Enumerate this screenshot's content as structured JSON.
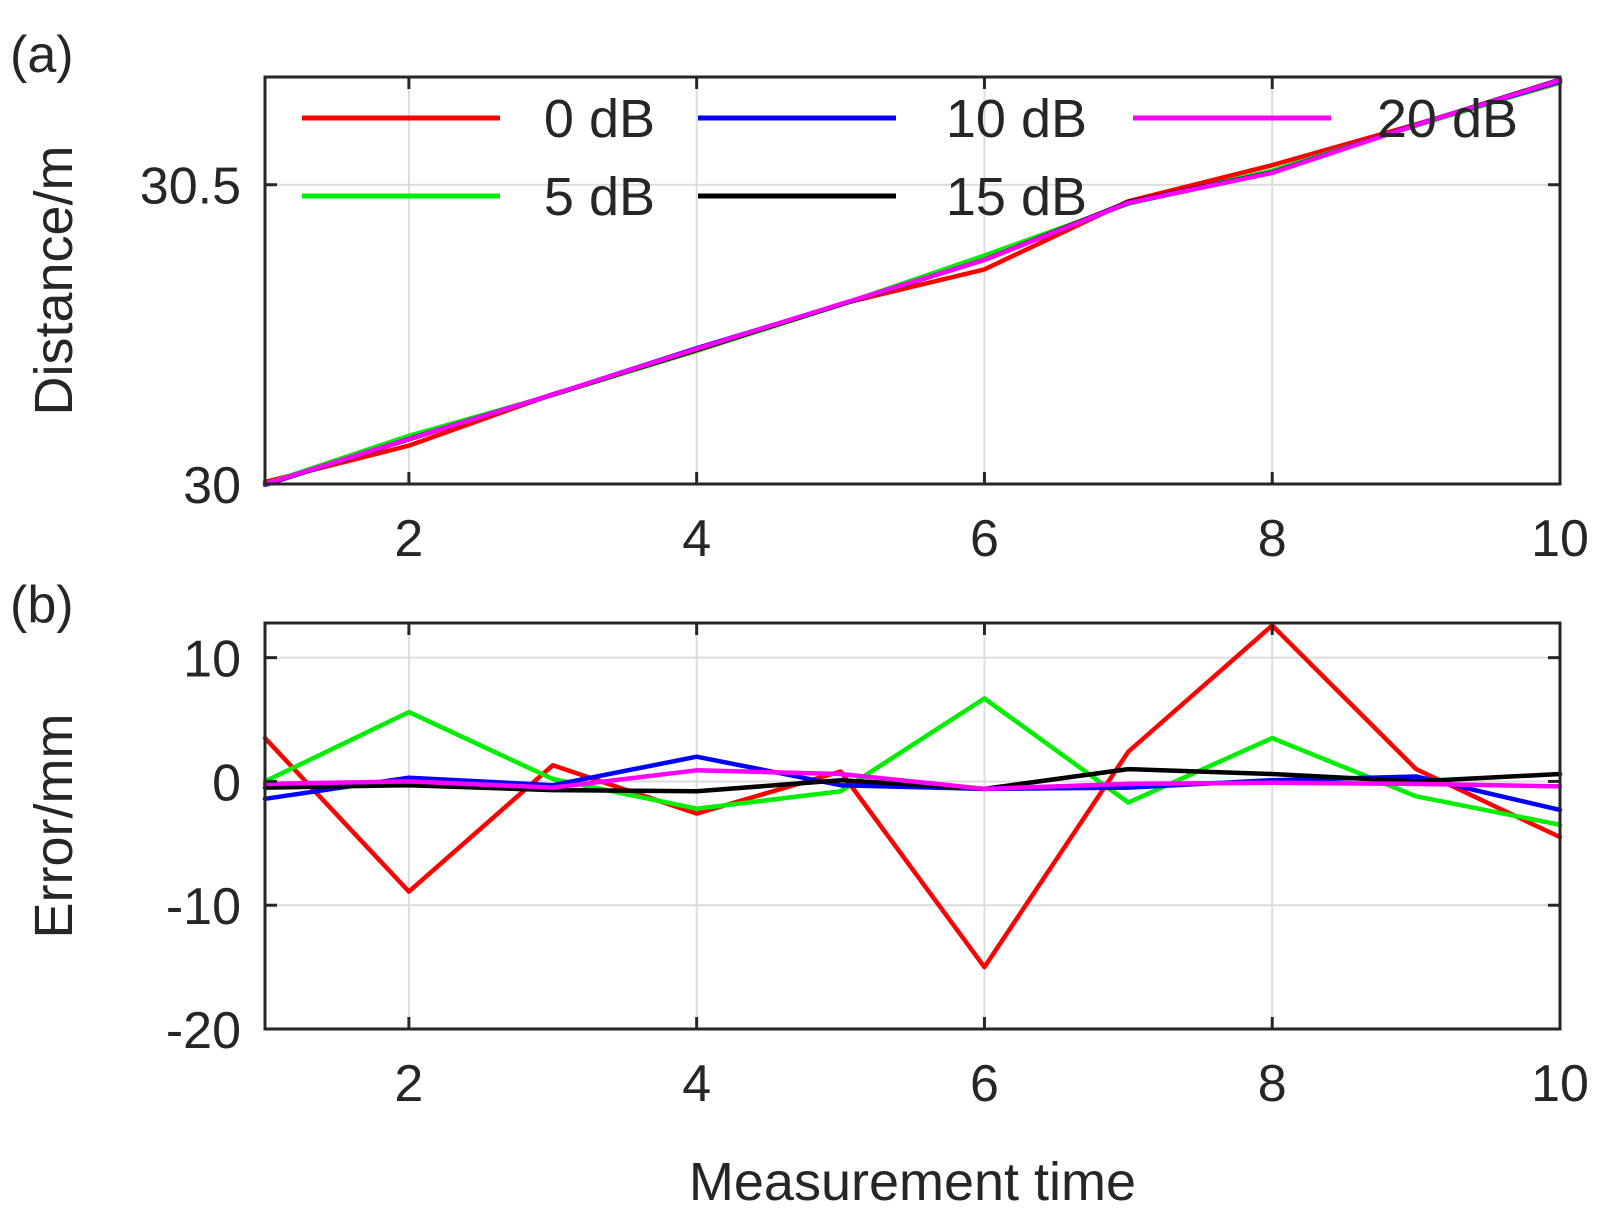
{
  "chart_data": [
    {
      "panel_label": "(a)",
      "type": "line",
      "xlabel": "",
      "ylabel": "Distance/m",
      "xlim": [
        1,
        10
      ],
      "ylim": [
        30,
        30.68
      ],
      "xticks": [
        2,
        4,
        6,
        8,
        10
      ],
      "yticks": [
        30,
        30.5
      ],
      "ytick_labels": [
        "30",
        "30.5"
      ],
      "grid": true,
      "legend": {
        "placement": "top",
        "columns": 3
      },
      "x": [
        1,
        2,
        3,
        4,
        5,
        6,
        7,
        8,
        9,
        10
      ],
      "series": [
        {
          "name": "0 dB",
          "color": "#ff0000",
          "values": [
            30.0035,
            30.0641,
            30.1498,
            30.2224,
            30.3008,
            30.3585,
            30.4724,
            30.5326,
            30.601,
            30.6705
          ]
        },
        {
          "name": "5 dB",
          "color": "#00ee00",
          "values": [
            30.0,
            30.0806,
            30.1487,
            30.2228,
            30.2992,
            30.3817,
            30.4683,
            30.5235,
            30.5988,
            30.6715
          ]
        },
        {
          "name": "10 dB",
          "color": "#0000ff",
          "values": [
            29.9986,
            30.0753,
            30.1492,
            30.227,
            30.2997,
            30.3744,
            30.4695,
            30.5201,
            30.6004,
            30.6727
          ]
        },
        {
          "name": "15 dB",
          "color": "#000000",
          "values": [
            29.9995,
            30.0747,
            30.1493,
            30.2242,
            30.2999,
            30.3744,
            30.471,
            30.5206,
            30.6,
            30.6756
          ]
        },
        {
          "name": "20 dB",
          "color": "#ff00ff",
          "values": [
            29.9998,
            30.075,
            30.1495,
            30.2259,
            30.3006,
            30.3744,
            30.4698,
            30.5199,
            30.5998,
            30.6746
          ]
        }
      ]
    },
    {
      "panel_label": "(b)",
      "type": "line",
      "xlabel": "Measurement time",
      "ylabel": "Error/mm",
      "xlim": [
        1,
        10
      ],
      "ylim": [
        -20,
        12.8
      ],
      "xticks": [
        2,
        4,
        6,
        8,
        10
      ],
      "yticks": [
        -20,
        -10,
        0,
        10
      ],
      "ytick_labels": [
        "-20",
        "-10",
        "0",
        "10"
      ],
      "grid": true,
      "x": [
        1,
        2,
        3,
        4,
        5,
        6,
        7,
        8,
        9,
        10
      ],
      "series": [
        {
          "name": "0 dB",
          "color": "#ff0000",
          "values": [
            3.5,
            -8.9,
            1.3,
            -2.6,
            0.8,
            -15.0,
            2.4,
            12.6,
            1.0,
            -4.5
          ]
        },
        {
          "name": "5 dB",
          "color": "#00ee00",
          "values": [
            0,
            5.6,
            0.2,
            -2.2,
            -0.8,
            6.7,
            -1.7,
            3.5,
            -1.2,
            -3.5
          ]
        },
        {
          "name": "10 dB",
          "color": "#0000ff",
          "values": [
            -1.4,
            0.3,
            -0.3,
            2.0,
            -0.3,
            -0.6,
            -0.5,
            0.1,
            0.4,
            -2.3
          ]
        },
        {
          "name": "15 dB",
          "color": "#000000",
          "values": [
            -0.5,
            -0.3,
            -0.7,
            -0.8,
            0.1,
            -0.6,
            1.0,
            0.6,
            0.0,
            0.6
          ]
        },
        {
          "name": "20 dB",
          "color": "#ff00ff",
          "values": [
            -0.2,
            0.0,
            -0.5,
            0.9,
            0.6,
            -0.6,
            -0.2,
            -0.1,
            -0.2,
            -0.4
          ]
        }
      ]
    }
  ]
}
